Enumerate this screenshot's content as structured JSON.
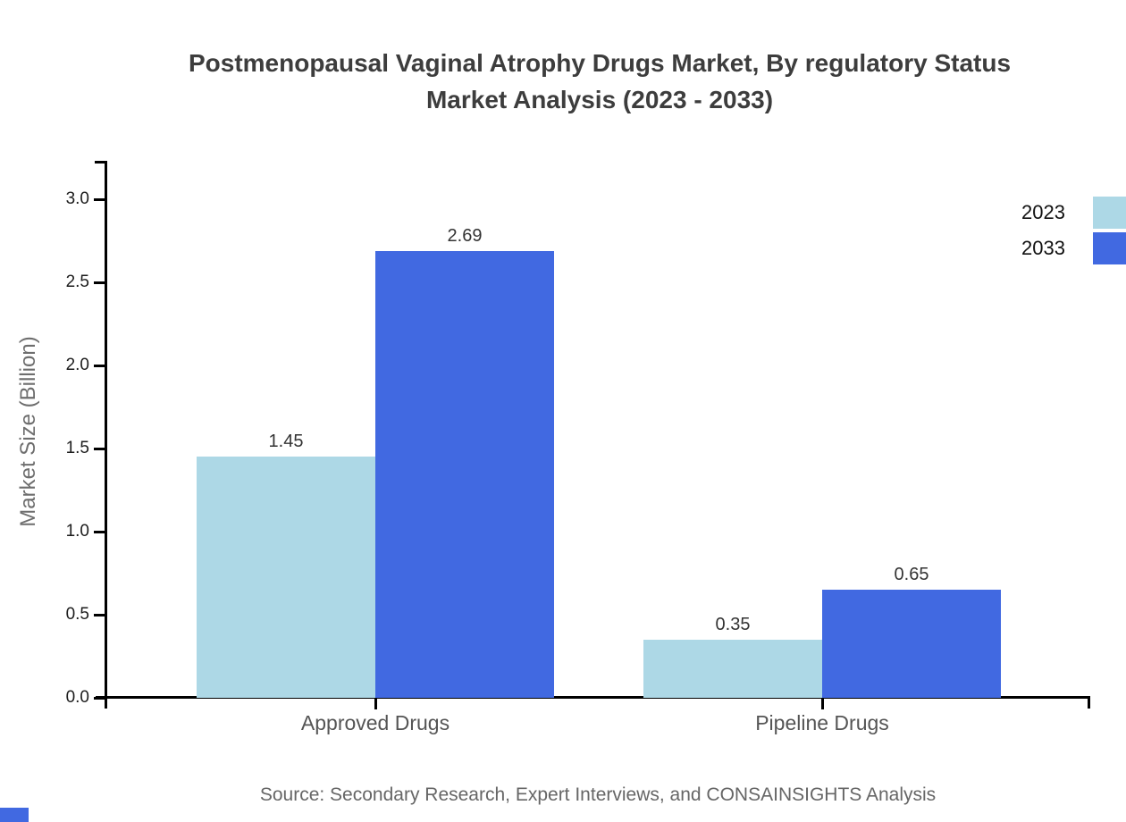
{
  "title": {
    "line1": "Postmenopausal Vaginal Atrophy Drugs Market, By regulatory Status",
    "line2": "Market Analysis (2023 - 2033)"
  },
  "y_axis": {
    "label": "Market Size (Billion)"
  },
  "source": "Source: Secondary Research, Expert Interviews, and CONSAINSIGHTS Analysis",
  "colors": {
    "series_2023": "#ADD8E6",
    "series_2033": "#4169E1",
    "axis": "#000000",
    "brand_mark": "#4169E1"
  },
  "chart_data": {
    "type": "bar",
    "title": "Postmenopausal Vaginal Atrophy Drugs Market, By regulatory Status Market Analysis (2023 - 2033)",
    "categories": [
      "Approved Drugs",
      "Pipeline Drugs"
    ],
    "series": [
      {
        "name": "2023",
        "color": "#ADD8E6",
        "values": [
          1.45,
          0.35
        ]
      },
      {
        "name": "2033",
        "color": "#4169E1",
        "values": [
          2.69,
          0.65
        ]
      }
    ],
    "bar_value_labels": [
      [
        "1.45",
        "0.35"
      ],
      [
        "2.69",
        "0.65"
      ]
    ],
    "xlabel": "",
    "ylabel": "Market Size (Billion)",
    "ylim": [
      0.0,
      3.0
    ],
    "yticks": [
      "0.0",
      "0.5",
      "1.0",
      "1.5",
      "2.0",
      "2.5",
      "3.0"
    ],
    "grid": false,
    "legend_position": "upper-right-outside"
  }
}
